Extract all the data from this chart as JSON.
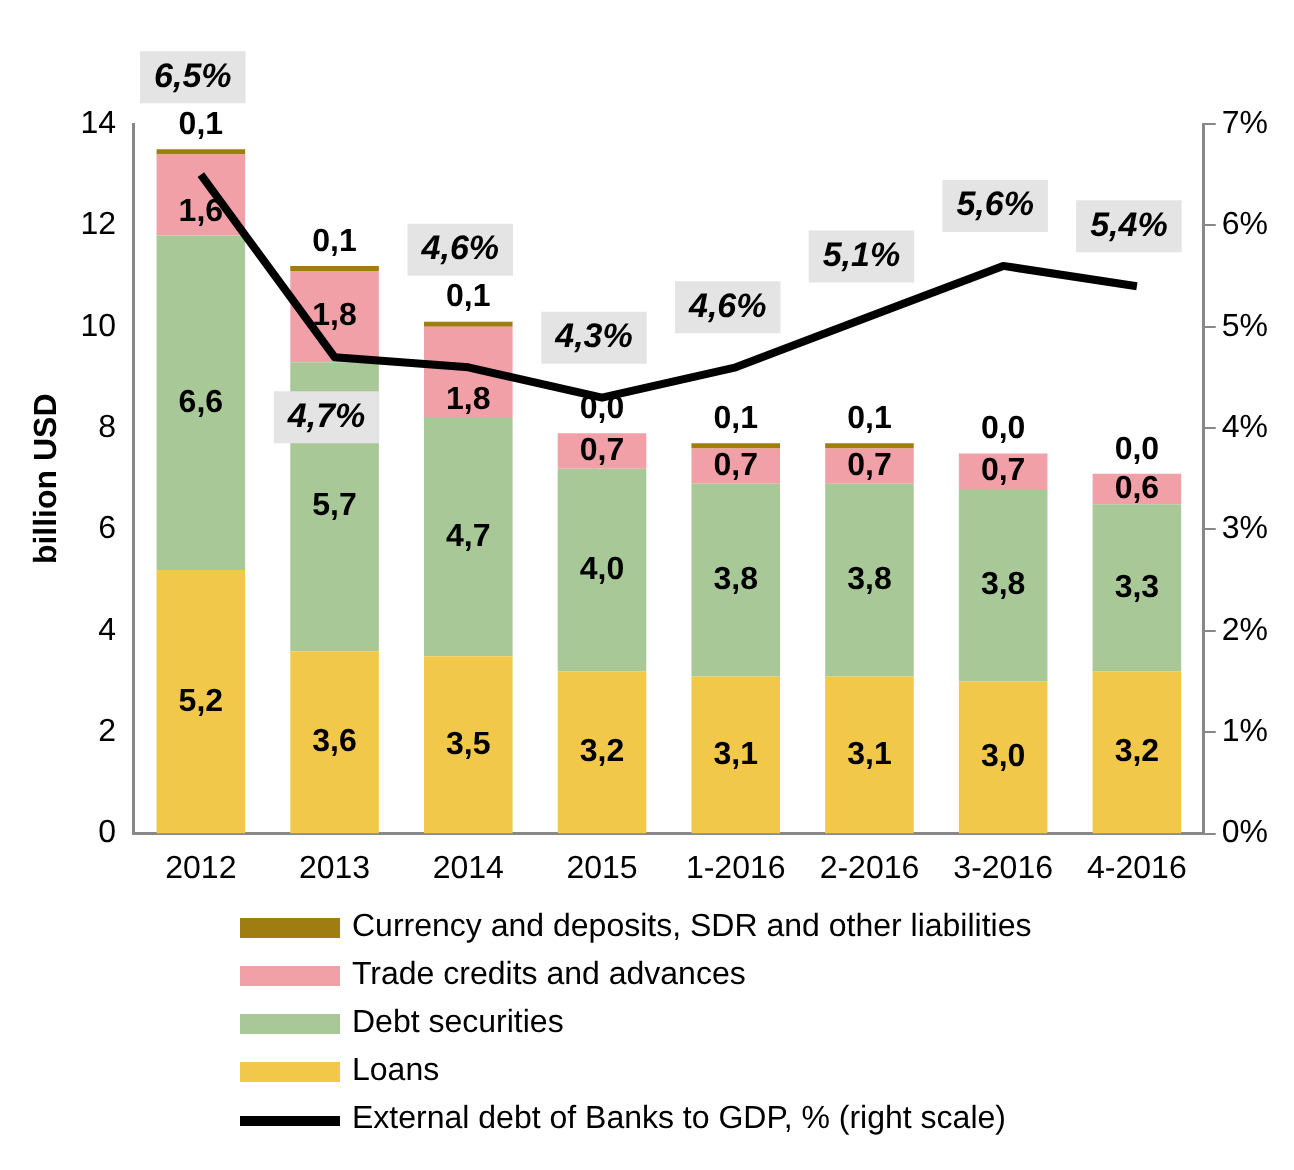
{
  "chart_data": {
    "type": "bar",
    "stacked": true,
    "ylabel": "billion USD",
    "categories": [
      "2012",
      "2013",
      "2014",
      "2015",
      "1-2016",
      "2-2016",
      "3-2016",
      "4-2016"
    ],
    "ylim": [
      0,
      14
    ],
    "yticks": [
      0,
      2,
      4,
      6,
      8,
      10,
      12,
      14
    ],
    "y2lim": [
      0,
      7
    ],
    "y2ticks": [
      {
        "value": 0,
        "label": "0%"
      },
      {
        "value": 1,
        "label": "1%"
      },
      {
        "value": 2,
        "label": "2%"
      },
      {
        "value": 3,
        "label": "3%"
      },
      {
        "value": 4,
        "label": "4%"
      },
      {
        "value": 5,
        "label": "5%"
      },
      {
        "value": 6,
        "label": "6%"
      },
      {
        "value": 7,
        "label": "7%"
      }
    ],
    "grid": false,
    "legend": "bottom",
    "marker": "none",
    "line_style": "solid",
    "series": [
      {
        "name": "External debt of Banks to GDP, % (right scale)",
        "type": "line",
        "axis": "y2",
        "color": "#000000",
        "values": [
          6.5,
          4.7,
          4.6,
          4.3,
          4.6,
          5.1,
          5.6,
          5.4
        ],
        "value_labels": [
          "6,5%",
          "4,7%",
          "4,6%",
          "4,3%",
          "4,6%",
          "5,1%",
          "5,6%",
          "5,4%"
        ]
      },
      {
        "name": "Loans",
        "color": "#f2c84b",
        "values": [
          5.2,
          3.6,
          3.5,
          3.2,
          3.1,
          3.1,
          3.0,
          3.2
        ],
        "value_labels": [
          "5,2",
          "3,6",
          "3,5",
          "3,2",
          "3,1",
          "3,1",
          "3,0",
          "3,2"
        ]
      },
      {
        "name": "Debt securities",
        "color": "#a8c898",
        "values": [
          6.6,
          5.7,
          4.7,
          4.0,
          3.8,
          3.8,
          3.8,
          3.3
        ],
        "value_labels": [
          "6,6",
          "5,7",
          "4,7",
          "4,0",
          "3,8",
          "3,8",
          "3,8",
          "3,3"
        ]
      },
      {
        "name": "Trade credits and advances",
        "color": "#f1a0a8",
        "values": [
          1.6,
          1.8,
          1.8,
          0.7,
          0.7,
          0.7,
          0.7,
          0.6
        ],
        "value_labels": [
          "1,6",
          "1,8",
          "1,8",
          "0,7",
          "0,7",
          "0,7",
          "0,7",
          "0,6"
        ]
      },
      {
        "name": "Currency and deposits, SDR and other liabilities",
        "color": "#a07d10",
        "values": [
          0.1,
          0.1,
          0.1,
          0.0,
          0.1,
          0.1,
          0.0,
          0.0
        ],
        "value_labels": [
          "0,1",
          "0,1",
          "0,1",
          "0,0",
          "0,1",
          "0,1",
          "0,0",
          "0,0"
        ]
      }
    ]
  }
}
